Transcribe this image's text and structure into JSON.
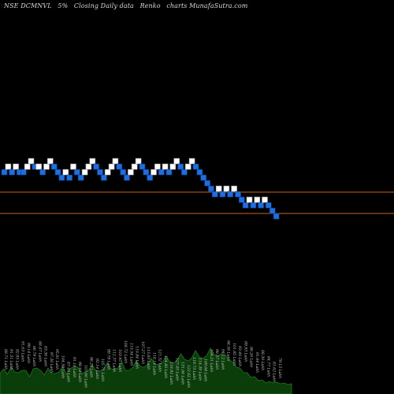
{
  "header": {
    "symbol": "NSE DCMNVL",
    "renko_size": "5%",
    "description": "Closing Daily data",
    "chart_kind": "Renko",
    "source": "charts MunafaSutra.com"
  },
  "colors": {
    "background": "#000000",
    "up_brick": "#ffffff",
    "down_brick": "#1c6fe0",
    "brick_border": "#0a3a8a",
    "level_line": "#c8641e",
    "volume_fill": "#0b3d0b",
    "volume_line": "#1e7a1e",
    "volume_label": "#c8c8c8"
  },
  "chart_data": {
    "type": "renko",
    "brick_size": "5%",
    "bricks": [
      {
        "row": 0,
        "dir": "down"
      },
      {
        "row": -1,
        "dir": "up"
      },
      {
        "row": 0,
        "dir": "down"
      },
      {
        "row": -1,
        "dir": "up"
      },
      {
        "row": 0,
        "dir": "down"
      },
      {
        "row": 0,
        "dir": "down"
      },
      {
        "row": -1,
        "dir": "up"
      },
      {
        "row": -2,
        "dir": "up"
      },
      {
        "row": -1,
        "dir": "down"
      },
      {
        "row": -1,
        "dir": "up"
      },
      {
        "row": 0,
        "dir": "down"
      },
      {
        "row": -1,
        "dir": "up"
      },
      {
        "row": -2,
        "dir": "up"
      },
      {
        "row": -1,
        "dir": "down"
      },
      {
        "row": 0,
        "dir": "down"
      },
      {
        "row": 1,
        "dir": "down"
      },
      {
        "row": 0,
        "dir": "up"
      },
      {
        "row": 1,
        "dir": "down"
      },
      {
        "row": -1,
        "dir": "up"
      },
      {
        "row": 0,
        "dir": "down"
      },
      {
        "row": 1,
        "dir": "down"
      },
      {
        "row": 0,
        "dir": "up"
      },
      {
        "row": -1,
        "dir": "up"
      },
      {
        "row": -2,
        "dir": "up"
      },
      {
        "row": -1,
        "dir": "down"
      },
      {
        "row": 0,
        "dir": "down"
      },
      {
        "row": 1,
        "dir": "down"
      },
      {
        "row": 0,
        "dir": "up"
      },
      {
        "row": -1,
        "dir": "up"
      },
      {
        "row": -2,
        "dir": "up"
      },
      {
        "row": -1,
        "dir": "down"
      },
      {
        "row": 0,
        "dir": "down"
      },
      {
        "row": 1,
        "dir": "down"
      },
      {
        "row": 0,
        "dir": "up"
      },
      {
        "row": -1,
        "dir": "up"
      },
      {
        "row": -2,
        "dir": "up"
      },
      {
        "row": -1,
        "dir": "down"
      },
      {
        "row": 0,
        "dir": "down"
      },
      {
        "row": 1,
        "dir": "down"
      },
      {
        "row": 0,
        "dir": "up"
      },
      {
        "row": -1,
        "dir": "up"
      },
      {
        "row": 0,
        "dir": "down"
      },
      {
        "row": -1,
        "dir": "up"
      },
      {
        "row": 0,
        "dir": "down"
      },
      {
        "row": -1,
        "dir": "up"
      },
      {
        "row": -2,
        "dir": "up"
      },
      {
        "row": -1,
        "dir": "down"
      },
      {
        "row": 0,
        "dir": "down"
      },
      {
        "row": -1,
        "dir": "up"
      },
      {
        "row": -2,
        "dir": "up"
      },
      {
        "row": -1,
        "dir": "down"
      },
      {
        "row": 0,
        "dir": "down"
      },
      {
        "row": 1,
        "dir": "down"
      },
      {
        "row": 2,
        "dir": "down"
      },
      {
        "row": 3,
        "dir": "down"
      },
      {
        "row": 4,
        "dir": "down"
      },
      {
        "row": 3,
        "dir": "up"
      },
      {
        "row": 4,
        "dir": "down"
      },
      {
        "row": 3,
        "dir": "up"
      },
      {
        "row": 4,
        "dir": "down"
      },
      {
        "row": 3,
        "dir": "up"
      },
      {
        "row": 4,
        "dir": "down"
      },
      {
        "row": 5,
        "dir": "down"
      },
      {
        "row": 6,
        "dir": "down"
      },
      {
        "row": 5,
        "dir": "up"
      },
      {
        "row": 6,
        "dir": "down"
      },
      {
        "row": 5,
        "dir": "up"
      },
      {
        "row": 6,
        "dir": "down"
      },
      {
        "row": 5,
        "dir": "up"
      },
      {
        "row": 6,
        "dir": "down"
      },
      {
        "row": 7,
        "dir": "down"
      },
      {
        "row": 8,
        "dir": "down"
      }
    ],
    "level_lines_rows": [
      3.7,
      7.55
    ],
    "volume": [
      26,
      29,
      25,
      31,
      28,
      24,
      30,
      27,
      22,
      29,
      33,
      27,
      24,
      30,
      26,
      23,
      28,
      32,
      25,
      29,
      35,
      31,
      27,
      24,
      30,
      34,
      29,
      26,
      31,
      36,
      32,
      28,
      33,
      38,
      30,
      27,
      34,
      39,
      35,
      31,
      37,
      42,
      38,
      34,
      40,
      45,
      41,
      36,
      43,
      48,
      44,
      39,
      46,
      52,
      47,
      42,
      49,
      55,
      50,
      45,
      51,
      47,
      43,
      38,
      34,
      30,
      27,
      24,
      21,
      19,
      17,
      15,
      14,
      13,
      14,
      12,
      13,
      11,
      12,
      10
    ],
    "volume_labels": [
      "88.71 Lakh",
      "91.51 Lakh",
      "92.95 Lakh",
      "91.63 Lakh",
      "99.14 Lakh",
      "86.79 Lakh",
      "88.47 Lakh",
      "83.36 Lakh",
      "97.36 Lakh",
      "95.81 Lakh",
      "104.50 Lakh",
      "87.44 Lakh",
      "91.16 Lakh",
      "98.44 Lakh",
      "103.66 Lakh",
      "96.29 Lakh",
      "92.14 Lakh",
      "105.71 Lakh",
      "99.79 Lakh",
      "112.37 Lakh",
      "103.45 Lakh",
      "108.72 Lakh",
      "115.54 Lakh",
      "110.84 Lakh",
      "107.27 Lakh",
      "113.83 Lakh",
      "118.14 Lakh",
      "121.32 Lakh",
      "124.80 Lakh",
      "116.92 Lakh",
      "127.45 Lakh",
      "131.06 Lakh",
      "122.62 Lakh",
      "119.73 Lakh",
      "114.39 Lakh",
      "109.68 Lakh",
      "104.21 Lakh",
      "98.57 Lakh",
      "94.12 Lakh",
      "96.56 Lakh",
      "101.85 Lakh",
      "93.40 Lakh",
      "89.93 Lakh",
      "86.26 Lakh",
      "91.44 Lakh",
      "88.30 Lakh",
      "84.77 Lakh",
      "81.62 Lakh",
      "79.15 Lakh"
    ]
  }
}
